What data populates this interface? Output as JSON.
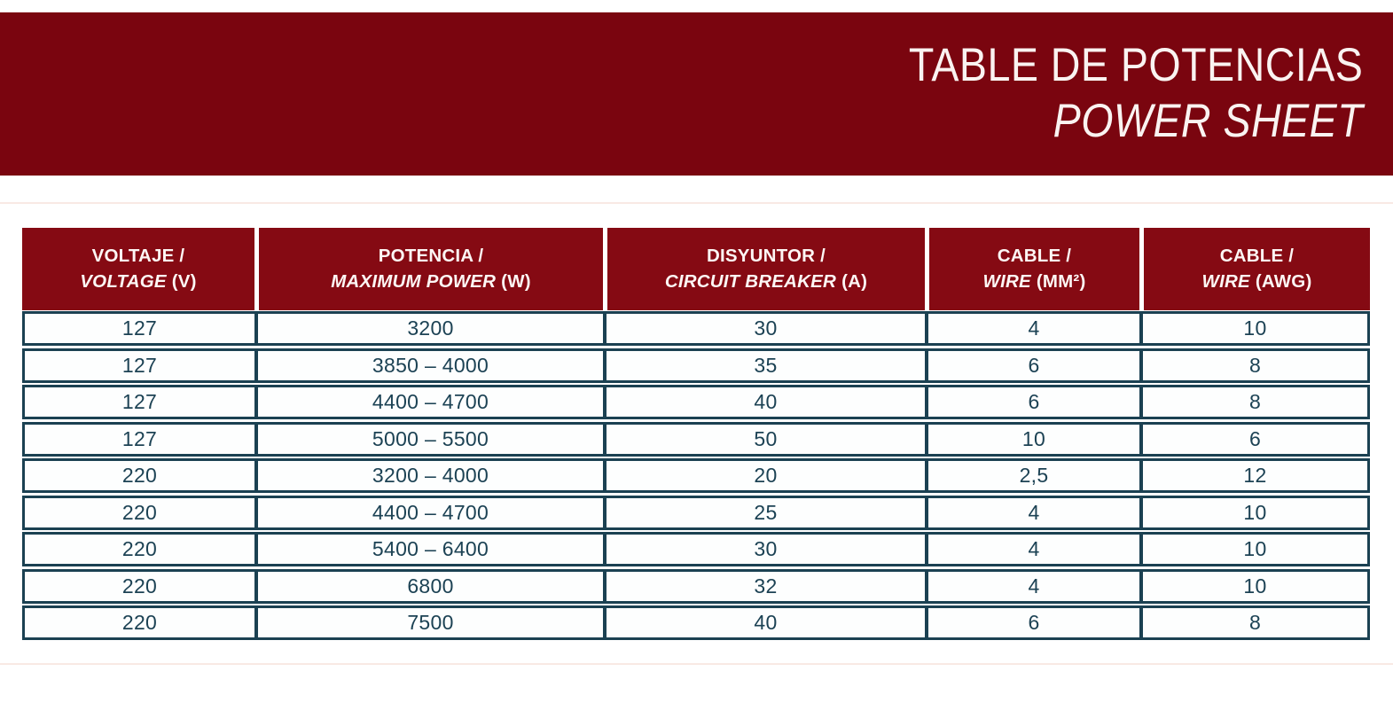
{
  "banner": {
    "title": "TABLE DE POTENCIAS",
    "subtitle": "POWER SHEET"
  },
  "table": {
    "columns": [
      {
        "es": "VOLTAJE /",
        "en": "VOLTAGE",
        "unit": "(V)"
      },
      {
        "es": "POTENCIA /",
        "en": "MAXIMUM POWER",
        "unit": "(W)"
      },
      {
        "es": "DISYUNTOR /",
        "en": "CIRCUIT BREAKER",
        "unit": "(A)"
      },
      {
        "es": "CABLE /",
        "en": "WIRE",
        "unit": "(MM²)"
      },
      {
        "es": "CABLE /",
        "en": "WIRE",
        "unit": "(AWG)"
      }
    ],
    "rows": [
      [
        "127",
        "3200",
        "30",
        "4",
        "10"
      ],
      [
        "127",
        "3850 – 4000",
        "35",
        "6",
        "8"
      ],
      [
        "127",
        "4400 – 4700",
        "40",
        "6",
        "8"
      ],
      [
        "127",
        "5000 – 5500",
        "50",
        "10",
        "6"
      ],
      [
        "220",
        "3200 – 4000",
        "20",
        "2,5",
        "12"
      ],
      [
        "220",
        "4400 – 4700",
        "25",
        "4",
        "10"
      ],
      [
        "220",
        "5400 – 6400",
        "30",
        "4",
        "10"
      ],
      [
        "220",
        "6800",
        "32",
        "4",
        "10"
      ],
      [
        "220",
        "7500",
        "40",
        "6",
        "8"
      ]
    ]
  },
  "colors": {
    "banner_red": "#7a050f",
    "header_red": "#850a13",
    "line_teal": "#1b4152",
    "text_teal": "#1c4254",
    "row_bg": "#fdfefe",
    "divider_pink": "#f8e9e4",
    "title_text": "#faf3f1"
  }
}
